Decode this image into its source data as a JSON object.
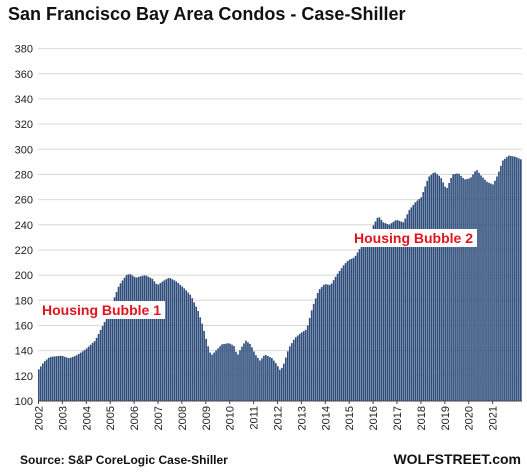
{
  "chart_data": {
    "type": "bar",
    "title": "San Francisco Bay Area Condos - Case-Shiller",
    "xlabel": "",
    "ylabel": "",
    "ylim": [
      100,
      390
    ],
    "yticks": [
      100,
      120,
      140,
      160,
      180,
      200,
      220,
      240,
      260,
      280,
      300,
      320,
      340,
      360,
      380
    ],
    "xticks": [
      "2002",
      "2003",
      "2004",
      "2005",
      "2006",
      "2007",
      "2008",
      "2009",
      "2010",
      "2011",
      "2012",
      "2013",
      "2014",
      "2015",
      "2016",
      "2017",
      "2018",
      "2019",
      "2020",
      "2021"
    ],
    "grid": "horizontal",
    "bar_color": "#2e4d7b",
    "annotation_color": "#e0141e",
    "annotations": [
      "Housing Bubble 1",
      "Housing Bubble 2"
    ],
    "keypoints": [
      [
        2002.0,
        124
      ],
      [
        2002.25,
        131
      ],
      [
        2002.5,
        135
      ],
      [
        2003.0,
        136
      ],
      [
        2003.3,
        134
      ],
      [
        2003.6,
        136
      ],
      [
        2004.0,
        141
      ],
      [
        2004.4,
        148
      ],
      [
        2004.8,
        163
      ],
      [
        2005.1,
        177
      ],
      [
        2005.4,
        192
      ],
      [
        2005.7,
        200
      ],
      [
        2005.85,
        201
      ],
      [
        2006.1,
        198
      ],
      [
        2006.5,
        200
      ],
      [
        2006.8,
        197
      ],
      [
        2007.0,
        192
      ],
      [
        2007.3,
        196
      ],
      [
        2007.5,
        198
      ],
      [
        2007.8,
        195
      ],
      [
        2008.1,
        190
      ],
      [
        2008.4,
        184
      ],
      [
        2008.7,
        172
      ],
      [
        2008.9,
        160
      ],
      [
        2009.1,
        145
      ],
      [
        2009.25,
        136
      ],
      [
        2009.5,
        141
      ],
      [
        2009.7,
        145
      ],
      [
        2010.0,
        146
      ],
      [
        2010.2,
        144
      ],
      [
        2010.35,
        136
      ],
      [
        2010.5,
        142
      ],
      [
        2010.7,
        148
      ],
      [
        2010.9,
        145
      ],
      [
        2011.1,
        137
      ],
      [
        2011.3,
        132
      ],
      [
        2011.5,
        137
      ],
      [
        2011.8,
        134
      ],
      [
        2012.0,
        129
      ],
      [
        2012.15,
        124
      ],
      [
        2012.3,
        130
      ],
      [
        2012.5,
        142
      ],
      [
        2012.75,
        150
      ],
      [
        2013.0,
        154
      ],
      [
        2013.25,
        157
      ],
      [
        2013.5,
        175
      ],
      [
        2013.75,
        188
      ],
      [
        2014.0,
        193
      ],
      [
        2014.25,
        192
      ],
      [
        2014.5,
        200
      ],
      [
        2014.8,
        208
      ],
      [
        2015.0,
        212
      ],
      [
        2015.25,
        214
      ],
      [
        2015.5,
        222
      ],
      [
        2015.8,
        228
      ],
      [
        2016.05,
        240
      ],
      [
        2016.25,
        247
      ],
      [
        2016.45,
        242
      ],
      [
        2016.7,
        240
      ],
      [
        2017.0,
        244
      ],
      [
        2017.3,
        242
      ],
      [
        2017.55,
        252
      ],
      [
        2017.8,
        258
      ],
      [
        2018.05,
        262
      ],
      [
        2018.35,
        278
      ],
      [
        2018.6,
        282
      ],
      [
        2018.85,
        278
      ],
      [
        2019.1,
        268
      ],
      [
        2019.35,
        280
      ],
      [
        2019.6,
        281
      ],
      [
        2019.85,
        276
      ],
      [
        2020.1,
        277
      ],
      [
        2020.35,
        284
      ],
      [
        2020.55,
        279
      ],
      [
        2020.8,
        274
      ],
      [
        2021.05,
        272
      ],
      [
        2021.25,
        280
      ],
      [
        2021.45,
        291
      ],
      [
        2021.7,
        295
      ],
      [
        2022.0,
        294
      ],
      [
        2022.2,
        292
      ]
    ]
  },
  "source": "Source: S&P CoreLogic Case-Shiller",
  "brand": "WOLFSTREET.com"
}
